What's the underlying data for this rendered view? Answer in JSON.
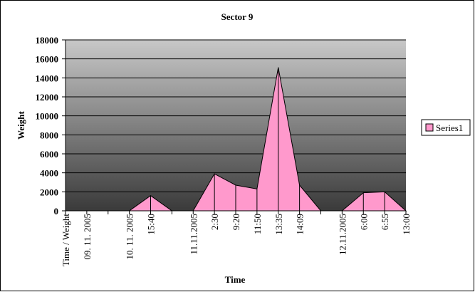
{
  "chart_data": {
    "type": "area",
    "title": "Sector 9",
    "x_label": "Time",
    "y_label": "Weight",
    "categories": [
      "Time / Weight",
      "09. 11. 2005",
      null,
      "10. 11. 2005",
      "15:40",
      null,
      "11.11.2005",
      "2:30",
      "9:20",
      "11:50",
      "13:35",
      "14:09",
      null,
      "12.11.2005",
      "6:00",
      "6:55",
      "13:00"
    ],
    "series": [
      {
        "name": "Series1",
        "color": "#ff99cc",
        "values": [
          0,
          0,
          0,
          0,
          1600,
          0,
          0,
          3900,
          2700,
          2300,
          15100,
          2700,
          0,
          0,
          1900,
          2000,
          0
        ]
      }
    ],
    "ylim": [
      0,
      18000
    ],
    "yticks": [
      0,
      2000,
      4000,
      6000,
      8000,
      10000,
      12000,
      14000,
      16000,
      18000
    ],
    "grid": true,
    "legend": "right"
  }
}
